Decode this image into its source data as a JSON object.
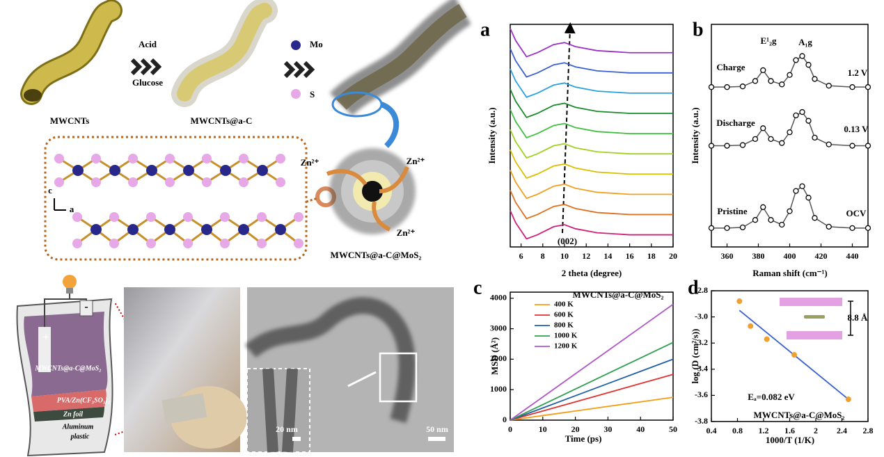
{
  "schematic": {
    "acid": "Acid",
    "glucose": "Glucose",
    "mwcnts": "MWCNTs",
    "mwcnts_ac": "MWCNTs@a-C",
    "mo": "Mo",
    "s": "S",
    "axis_c": "c",
    "axis_a": "a",
    "zn": [
      "Zn²⁺",
      "Zn²⁺",
      "Zn²⁺"
    ],
    "product": "MWCNTs@a-C@MoS₂",
    "battery": {
      "plus": "+",
      "minus": "-",
      "cathode": "MWCNTs@a-C@MoS₂",
      "electrolyte": "PVA/Zn(CF₃SO₃)₂",
      "anode": "Zn foil",
      "case": [
        "Aluminum",
        "plastic"
      ]
    },
    "tem": {
      "scale_inset": "20 nm",
      "scale_main": "50 nm"
    }
  },
  "chart_data": [
    {
      "type": "line",
      "panel_label": "a",
      "xlabel": "2 theta (degree)",
      "ylabel": "Intensity (a.u.)",
      "x": [
        5,
        5.5,
        6.5,
        7.5,
        9,
        10,
        11,
        13,
        16,
        20
      ],
      "xlim": [
        5,
        20
      ],
      "xticks": [
        6,
        8,
        10,
        12,
        14,
        16,
        18,
        20
      ],
      "ylim": [
        0,
        11
      ],
      "annotations": [
        "(002)"
      ],
      "series": [
        {
          "color": "#d0207a",
          "values": [
            1.8,
            1.2,
            0.4,
            0.6,
            1.0,
            1.1,
            0.9,
            0.7,
            0.6,
            0.6
          ]
        },
        {
          "color": "#e07020",
          "values": [
            2.8,
            2.2,
            1.4,
            1.6,
            2.0,
            2.1,
            1.9,
            1.7,
            1.6,
            1.6
          ]
        },
        {
          "color": "#f0a020",
          "values": [
            3.8,
            3.2,
            2.4,
            2.6,
            3.0,
            3.1,
            2.9,
            2.7,
            2.6,
            2.6
          ]
        },
        {
          "color": "#d8c000",
          "values": [
            4.8,
            4.2,
            3.4,
            3.6,
            4.0,
            4.1,
            3.9,
            3.7,
            3.6,
            3.6
          ]
        },
        {
          "color": "#a0d020",
          "values": [
            5.8,
            5.2,
            4.4,
            4.6,
            5.0,
            5.1,
            4.9,
            4.7,
            4.6,
            4.6
          ]
        },
        {
          "color": "#40c040",
          "values": [
            6.8,
            6.2,
            5.4,
            5.6,
            6.0,
            6.1,
            5.9,
            5.7,
            5.6,
            5.6
          ]
        },
        {
          "color": "#1a8a2a",
          "values": [
            7.8,
            7.2,
            6.4,
            6.6,
            7.0,
            7.1,
            6.9,
            6.7,
            6.6,
            6.6
          ]
        },
        {
          "color": "#2aa0e0",
          "values": [
            8.8,
            8.2,
            7.4,
            7.6,
            8.0,
            8.1,
            7.9,
            7.7,
            7.6,
            7.6
          ]
        },
        {
          "color": "#3a5fd0",
          "values": [
            9.8,
            9.2,
            8.4,
            8.6,
            9.0,
            9.1,
            8.9,
            8.7,
            8.6,
            8.6
          ]
        },
        {
          "color": "#9b30c8",
          "values": [
            10.8,
            10.2,
            9.4,
            9.6,
            10.0,
            10.1,
            9.9,
            9.7,
            9.6,
            9.6
          ]
        }
      ]
    },
    {
      "type": "line",
      "panel_label": "b",
      "xlabel": "Raman shift (cm⁻¹)",
      "ylabel": "Intensity (a.u.)",
      "x": [
        350,
        360,
        370,
        378,
        383,
        388,
        395,
        400,
        404,
        408,
        412,
        416,
        425,
        440,
        450
      ],
      "xlim": [
        350,
        450
      ],
      "xticks": [
        360,
        380,
        400,
        420,
        440
      ],
      "ylim": [
        0,
        3.3
      ],
      "markers": true,
      "annotations": [
        "Charge",
        "1.2 V",
        "Discharge",
        "0.13 V",
        "Pristine",
        "OCV",
        "E¹₂g",
        "A₁g"
      ],
      "series": [
        {
          "color": "#555555",
          "values": [
            0.28,
            0.28,
            0.29,
            0.4,
            0.59,
            0.4,
            0.33,
            0.53,
            0.83,
            0.9,
            0.73,
            0.43,
            0.3,
            0.28,
            0.28
          ]
        },
        {
          "color": "#555555",
          "values": [
            1.5,
            1.5,
            1.51,
            1.6,
            1.76,
            1.6,
            1.54,
            1.7,
            1.95,
            2.0,
            1.87,
            1.62,
            1.52,
            1.5,
            1.5
          ]
        },
        {
          "color": "#555555",
          "values": [
            2.37,
            2.37,
            2.38,
            2.46,
            2.62,
            2.46,
            2.41,
            2.55,
            2.77,
            2.83,
            2.7,
            2.49,
            2.39,
            2.37,
            2.37
          ]
        }
      ]
    },
    {
      "type": "line",
      "panel_label": "c",
      "title": "MWCNTs@a-C@MoS₂",
      "xlabel": "Time (ps)",
      "ylabel": "MSD (Å²)",
      "x": [
        0,
        10,
        20,
        30,
        40,
        50
      ],
      "xlim": [
        0,
        50
      ],
      "xticks": [
        0,
        10,
        20,
        30,
        40,
        50
      ],
      "ylim": [
        0,
        4200
      ],
      "yticks": [
        0,
        1000,
        2000,
        3000,
        4000
      ],
      "legend": "upper left",
      "series": [
        {
          "name": "400 K",
          "color": "#f39c12",
          "values": [
            0,
            150,
            300,
            450,
            600,
            750
          ]
        },
        {
          "name": "600 K",
          "color": "#e03030",
          "values": [
            0,
            300,
            600,
            900,
            1200,
            1500
          ]
        },
        {
          "name": "800 K",
          "color": "#1f5fa8",
          "values": [
            0,
            400,
            800,
            1200,
            1600,
            2000
          ]
        },
        {
          "name": "1000 K",
          "color": "#2e9e4f",
          "values": [
            0,
            510,
            1020,
            1530,
            2040,
            2550
          ]
        },
        {
          "name": "1200 K",
          "color": "#b055c8",
          "values": [
            0,
            760,
            1520,
            2280,
            3040,
            3800
          ]
        }
      ]
    },
    {
      "type": "scatter",
      "panel_label": "d",
      "title": "MWCNTs@a-C@MoS₂",
      "xlabel": "1000/T (1/K)",
      "ylabel": "log (D (cm²/s))",
      "x": [
        0.83,
        1.0,
        1.25,
        1.67,
        2.5
      ],
      "values": [
        -2.88,
        -3.07,
        -3.17,
        -3.29,
        -3.63
      ],
      "color": "#f0a030",
      "fit": {
        "x": [
          0.83,
          2.5
        ],
        "values": [
          -2.95,
          -3.63
        ],
        "color": "#3a5fd0"
      },
      "xlim": [
        0.4,
        2.8
      ],
      "xticks": [
        0.4,
        0.8,
        1.2,
        1.6,
        2.0,
        2.4,
        2.8
      ],
      "ylim": [
        -3.8,
        -2.8
      ],
      "yticks": [
        {
          "value": -3.8,
          "label": "-3.8"
        },
        {
          "value": -3.6,
          "label": "-3.6"
        },
        {
          "value": -3.4,
          "label": "-3.4"
        },
        {
          "value": -3.2,
          "label": "-3.2"
        },
        {
          "value": -3,
          "label": "-3.0"
        },
        -2.8
      ],
      "annotations": [
        "Eₐ=0.082 eV",
        "8.8 Å"
      ]
    }
  ]
}
